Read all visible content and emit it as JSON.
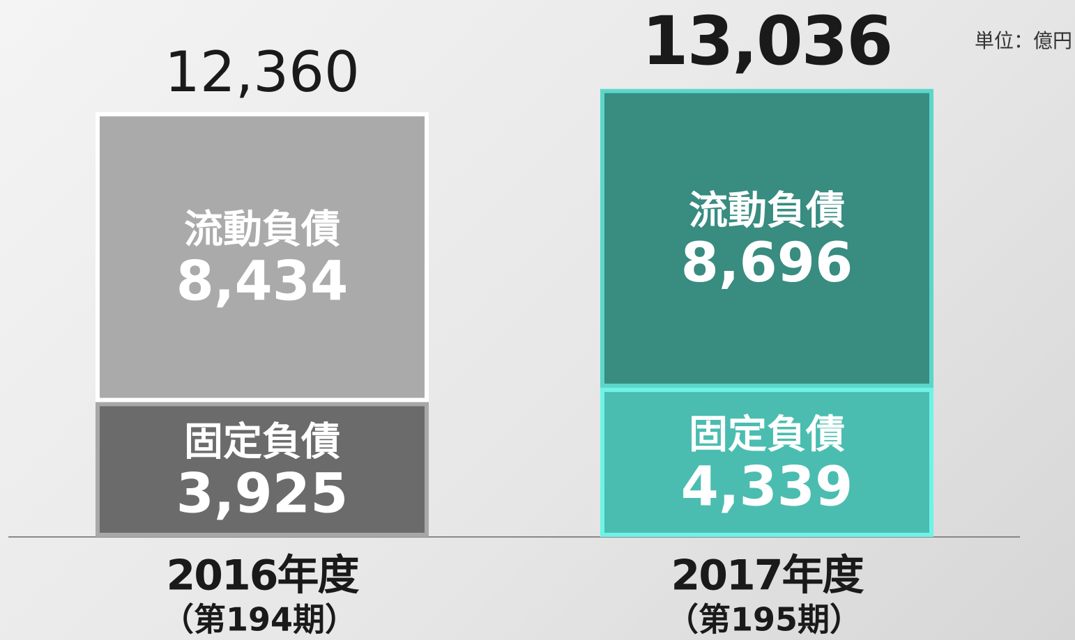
{
  "chart_data": {
    "type": "stacked_bar",
    "unit": "単位：億円",
    "categories": [
      "2016年度",
      "2017年度"
    ],
    "periods": [
      "（第194期）",
      "（第195期）"
    ],
    "series": [
      {
        "name": "固定負債",
        "values": [
          3925,
          4339
        ],
        "value_labels": [
          "3,925",
          "4,339"
        ],
        "colors": [
          "#6b6b6b",
          "#4abdb0"
        ],
        "border_colors": [
          "#a8a8a8",
          "#6ff3e6"
        ]
      },
      {
        "name": "流動負債",
        "values": [
          8434,
          8696
        ],
        "value_labels": [
          "8,434",
          "8,696"
        ],
        "colors": [
          "#aaaaaa",
          "#388c80"
        ],
        "border_colors": [
          "#ffffff",
          "#5cd6ca"
        ]
      }
    ],
    "totals": [
      12360,
      13036
    ],
    "total_labels": [
      "12,360",
      "13,036"
    ]
  }
}
